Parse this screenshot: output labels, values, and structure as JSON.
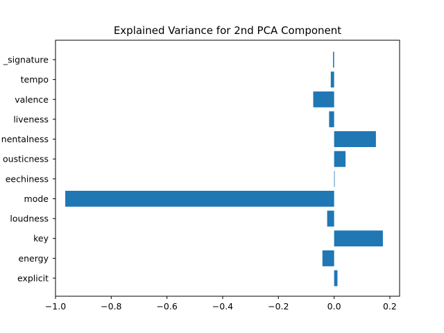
{
  "chart_data": {
    "type": "bar",
    "orientation": "horizontal",
    "title": "Explained Variance for 2nd PCA Component",
    "xlabel": "",
    "ylabel": "",
    "categories": [
      "explicit",
      "energy",
      "key",
      "loudness",
      "mode",
      "speechiness",
      "acousticness",
      "instrumentalness",
      "liveness",
      "valence",
      "tempo",
      "time_signature"
    ],
    "category_labels_visible": [
      "explicit",
      "energy",
      "key",
      "loudness",
      "mode",
      "eechiness",
      "ousticness",
      "nentalness",
      "liveness",
      "valence",
      "tempo",
      "_signature"
    ],
    "values": [
      0.012,
      -0.042,
      0.175,
      -0.025,
      -0.965,
      0.002,
      0.041,
      0.15,
      -0.018,
      -0.075,
      -0.012,
      -0.004
    ],
    "xlim": [
      -1.0,
      0.235
    ],
    "xticks": [
      -1.0,
      -0.8,
      -0.6,
      -0.4,
      -0.2,
      0.0,
      0.2
    ],
    "xtick_labels": [
      "−1.0",
      "−0.8",
      "−0.6",
      "−0.4",
      "−0.2",
      "0.0",
      "0.2"
    ],
    "grid": false,
    "color": "#1f77b4"
  }
}
